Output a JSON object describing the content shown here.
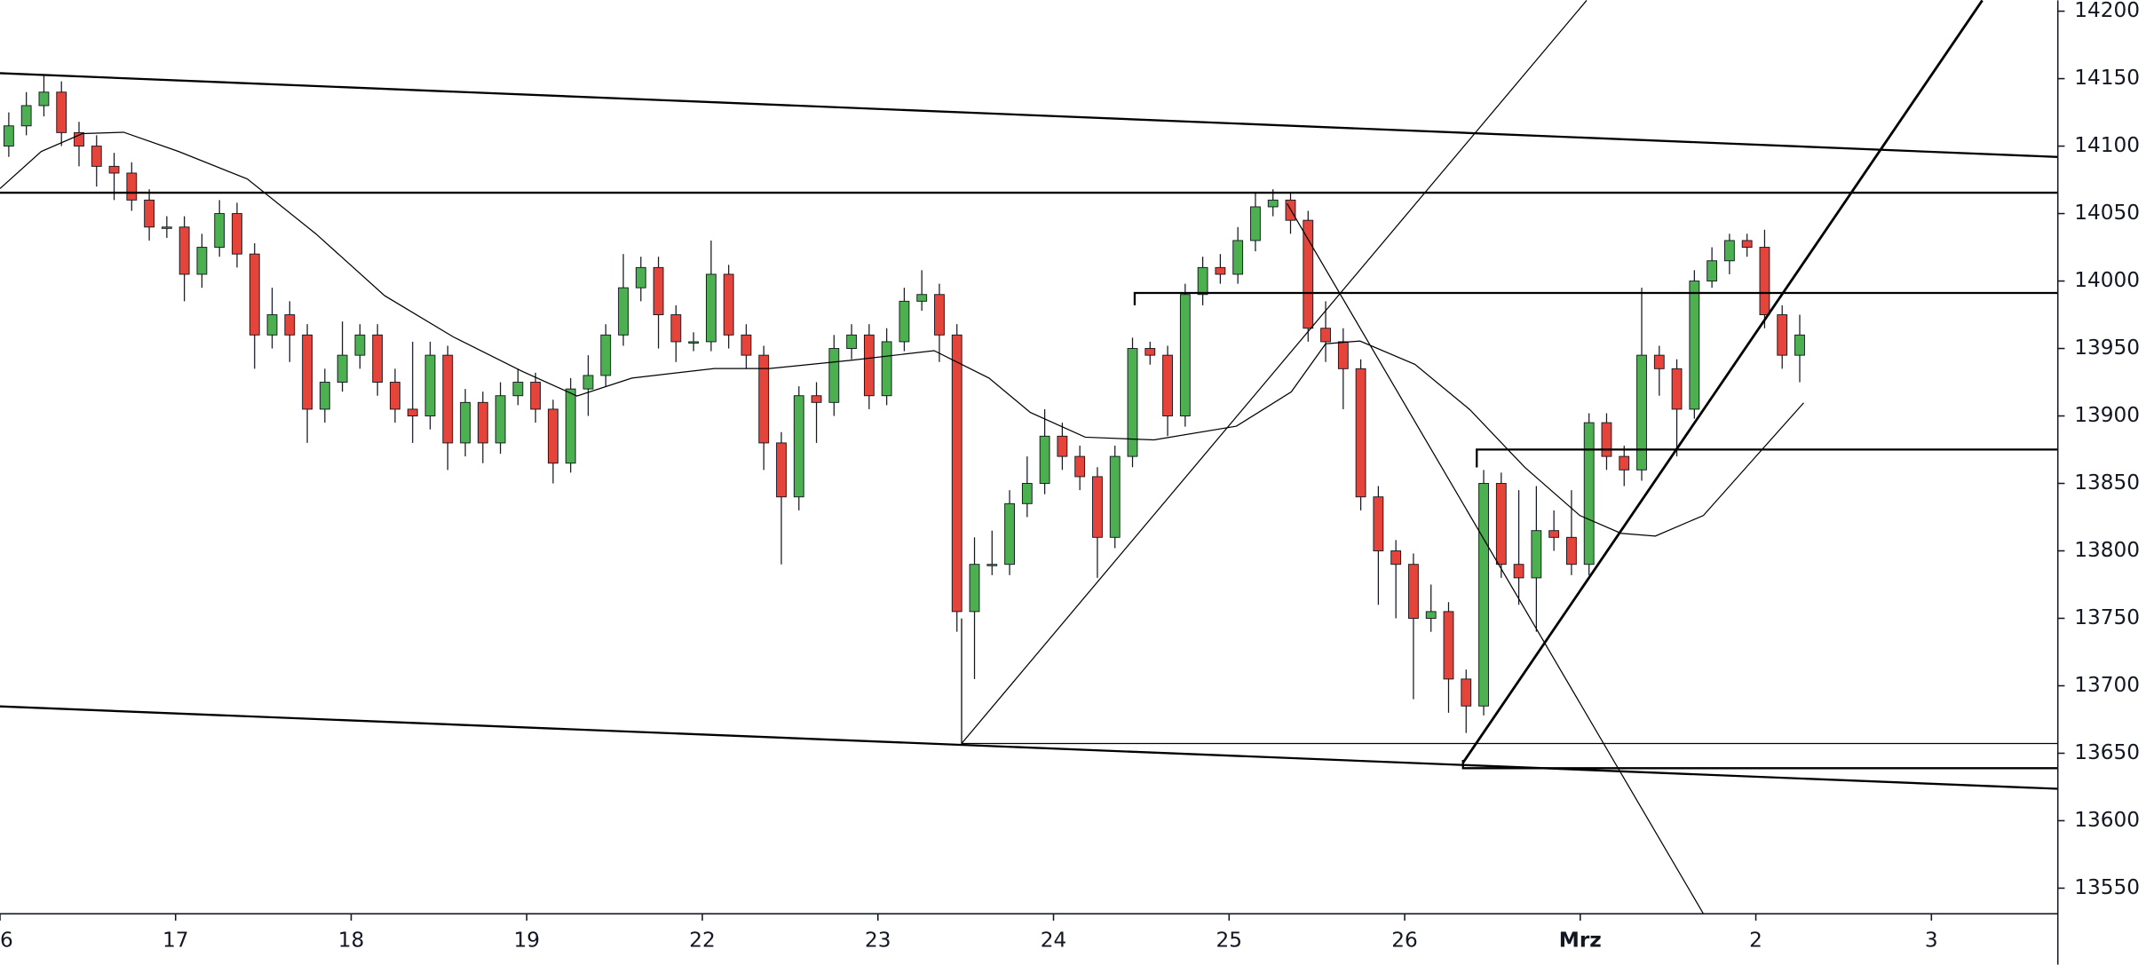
{
  "chart_data": {
    "type": "candlestick",
    "up_color": "#4caf50",
    "down_color": "#e5443a",
    "x": [
      0.05,
      0.15,
      0.25,
      0.35,
      0.45,
      0.55,
      0.65,
      0.75,
      0.85,
      0.95,
      1.05,
      1.15,
      1.25,
      1.35,
      1.45,
      1.55,
      1.65,
      1.75,
      1.85,
      1.95,
      2.05,
      2.15,
      2.25,
      2.35,
      2.45,
      2.55,
      2.65,
      2.75,
      2.85,
      2.95,
      3.05,
      3.15,
      3.25,
      3.35,
      3.45,
      3.55,
      3.65,
      3.75,
      3.85,
      3.95,
      4.05,
      4.15,
      4.25,
      4.35,
      4.45,
      4.55,
      4.65,
      4.75,
      4.85,
      4.95,
      5.05,
      5.15,
      5.25,
      5.35,
      5.45,
      5.55,
      5.65,
      5.75,
      5.85,
      5.95,
      6.05,
      6.15,
      6.25,
      6.35,
      6.45,
      6.55,
      6.65,
      6.75,
      6.85,
      6.95,
      7.05,
      7.15,
      7.25,
      7.35,
      7.45,
      7.55,
      7.65,
      7.75,
      7.85,
      7.95,
      8.05,
      8.15,
      8.25,
      8.35,
      8.45,
      8.55,
      8.65,
      8.75,
      8.85,
      8.95,
      9.05,
      9.15,
      9.25,
      9.35,
      9.45,
      9.55,
      9.65,
      9.75,
      9.85,
      9.95,
      10.05,
      10.15,
      10.25
    ],
    "open": [
      14100,
      14115,
      14130,
      14140,
      14110,
      14100,
      14085,
      14080,
      14060,
      14040,
      14040,
      14005,
      14025,
      14050,
      14020,
      13960,
      13975,
      13960,
      13905,
      13925,
      13945,
      13960,
      13925,
      13905,
      13900,
      13945,
      13880,
      13910,
      13880,
      13915,
      13925,
      13905,
      13865,
      13920,
      13930,
      13960,
      13995,
      14010,
      13975,
      13955,
      13955,
      14005,
      13960,
      13945,
      13880,
      13840,
      13915,
      13910,
      13950,
      13960,
      13915,
      13955,
      13985,
      13990,
      13960,
      13755,
      13790,
      13790,
      13835,
      13850,
      13885,
      13870,
      13855,
      13810,
      13870,
      13950,
      13945,
      13900,
      13990,
      14010,
      14005,
      14030,
      14055,
      14060,
      14045,
      13965,
      13955,
      13935,
      13840,
      13800,
      13790,
      13750,
      13755,
      13705,
      13685,
      13850,
      13790,
      13780,
      13815,
      13810,
      13790,
      13895,
      13870,
      13860,
      13945,
      13935,
      13905,
      14000,
      14015,
      14030,
      14025,
      13975,
      13945
    ],
    "high": [
      14125,
      14140,
      14152,
      14148,
      14118,
      14108,
      14095,
      14088,
      14068,
      14048,
      14048,
      14035,
      14060,
      14058,
      14028,
      13995,
      13985,
      13968,
      13935,
      13970,
      13968,
      13968,
      13935,
      13955,
      13955,
      13952,
      13920,
      13918,
      13925,
      13935,
      13932,
      13912,
      13928,
      13945,
      13968,
      14020,
      14018,
      14018,
      13982,
      13962,
      14030,
      14012,
      13968,
      13952,
      13888,
      13922,
      13925,
      13960,
      13968,
      13968,
      13965,
      13995,
      14008,
      13998,
      13968,
      13810,
      13815,
      13845,
      13870,
      13905,
      13895,
      13878,
      13862,
      13878,
      13958,
      13955,
      13952,
      13998,
      14018,
      14020,
      14040,
      14065,
      14068,
      14065,
      14052,
      13985,
      13965,
      13942,
      13848,
      13808,
      13798,
      13775,
      13762,
      13712,
      13860,
      13858,
      13845,
      13848,
      13830,
      13845,
      13902,
      13902,
      13878,
      13995,
      13952,
      13942,
      14008,
      14025,
      14035,
      14035,
      14038,
      13982,
      13975
    ],
    "low": [
      14092,
      14108,
      14122,
      14100,
      14085,
      14070,
      14060,
      14052,
      14030,
      14032,
      13985,
      13995,
      14018,
      14010,
      13935,
      13950,
      13940,
      13880,
      13895,
      13918,
      13935,
      13915,
      13895,
      13880,
      13890,
      13860,
      13870,
      13865,
      13872,
      13908,
      13895,
      13850,
      13858,
      13900,
      13922,
      13952,
      13985,
      13950,
      13940,
      13948,
      13948,
      13950,
      13935,
      13860,
      13790,
      13830,
      13880,
      13900,
      13942,
      13905,
      13908,
      13948,
      13978,
      13940,
      13740,
      13705,
      13782,
      13782,
      13825,
      13842,
      13860,
      13845,
      13780,
      13802,
      13862,
      13938,
      13885,
      13892,
      13982,
      13998,
      13998,
      14022,
      14048,
      14035,
      13955,
      13940,
      13905,
      13830,
      13760,
      13750,
      13690,
      13740,
      13680,
      13665,
      13678,
      13780,
      13760,
      13740,
      13800,
      13782,
      13782,
      13860,
      13848,
      13852,
      13915,
      13870,
      13898,
      13995,
      14005,
      14018,
      13965,
      13935,
      13925
    ],
    "close": [
      14115,
      14130,
      14140,
      14110,
      14100,
      14085,
      14080,
      14060,
      14040,
      14040,
      14005,
      14025,
      14050,
      14020,
      13960,
      13975,
      13960,
      13905,
      13925,
      13945,
      13960,
      13925,
      13905,
      13900,
      13945,
      13880,
      13910,
      13880,
      13915,
      13925,
      13905,
      13865,
      13920,
      13930,
      13960,
      13995,
      14010,
      13975,
      13955,
      13955,
      14005,
      13960,
      13945,
      13880,
      13840,
      13915,
      13910,
      13950,
      13960,
      13915,
      13955,
      13985,
      13990,
      13960,
      13755,
      13790,
      13790,
      13835,
      13850,
      13885,
      13870,
      13855,
      13810,
      13870,
      13950,
      13945,
      13900,
      13990,
      14010,
      14005,
      14030,
      14055,
      14060,
      14045,
      13965,
      13955,
      13935,
      13840,
      13800,
      13790,
      13750,
      13755,
      13705,
      13685,
      13850,
      13790,
      13780,
      13815,
      13810,
      13790,
      13895,
      13870,
      13860,
      13945,
      13935,
      13905,
      14000,
      14015,
      14030,
      14025,
      13975,
      13945,
      13960
    ],
    "xlim": [
      0,
      11.72
    ],
    "xticks": [
      {
        "value": 0,
        "label": "6"
      },
      {
        "value": 1,
        "label": "17"
      },
      {
        "value": 2,
        "label": "18"
      },
      {
        "value": 3,
        "label": "19"
      },
      {
        "value": 4,
        "label": "22"
      },
      {
        "value": 5,
        "label": "23"
      },
      {
        "value": 6,
        "label": "24"
      },
      {
        "value": 7,
        "label": "25"
      },
      {
        "value": 8,
        "label": "26"
      },
      {
        "value": 9,
        "label": "Mrz"
      },
      {
        "value": 10,
        "label": "2"
      },
      {
        "value": 11,
        "label": "3"
      }
    ],
    "ylim": [
      13531,
      14208
    ],
    "yticks": [
      13550,
      13600,
      13650,
      13700,
      13750,
      13800,
      13850,
      13900,
      13950,
      14000,
      14050,
      14100,
      14150,
      14200
    ]
  }
}
